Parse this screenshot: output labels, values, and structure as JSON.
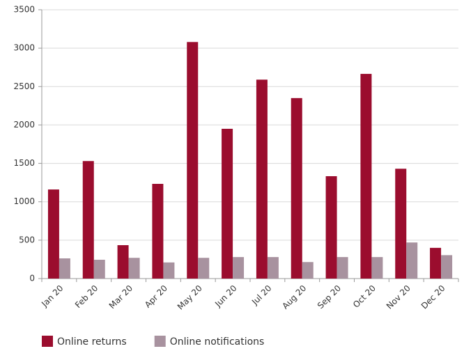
{
  "chart_data": {
    "type": "bar",
    "categories": [
      "Jan 20",
      "Feb 20",
      "Mar 20",
      "Apr 20",
      "May 20",
      "Jun 20",
      "Jul 20",
      "Aug 20",
      "Sep 20",
      "Oct 20",
      "Nov 20",
      "Dec 20"
    ],
    "series": [
      {
        "name": "Online returns",
        "color": "#9b0d2e",
        "values": [
          1160,
          1530,
          435,
          1233,
          3080,
          1950,
          2590,
          2350,
          1333,
          2665,
          1430,
          400
        ]
      },
      {
        "name": "Online notifications",
        "color": "#a8929f",
        "values": [
          263,
          245,
          270,
          210,
          270,
          280,
          280,
          215,
          280,
          280,
          470,
          305
        ]
      }
    ],
    "ylim": [
      0,
      3500
    ],
    "yticks": [
      0,
      500,
      1000,
      1500,
      2000,
      2500,
      3000,
      3500
    ],
    "grid": true,
    "legend": "bottom"
  }
}
